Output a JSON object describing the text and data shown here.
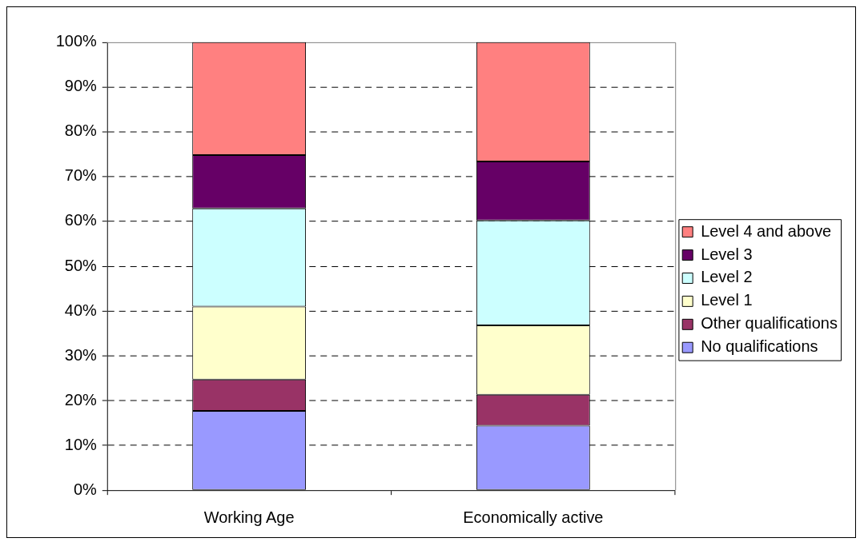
{
  "chart_data": {
    "type": "bar",
    "stacked": true,
    "categories": [
      "Working Age",
      "Economically active"
    ],
    "series": [
      {
        "name": "No qualifications",
        "color": "#9999ff",
        "values": [
          17.7,
          14.4
        ]
      },
      {
        "name": "Other qualifications",
        "color": "#993366",
        "values": [
          7.0,
          6.9
        ]
      },
      {
        "name": "Level 1",
        "color": "#ffffcc",
        "values": [
          16.3,
          15.5
        ]
      },
      {
        "name": "Level 2",
        "color": "#ccffff",
        "values": [
          21.9,
          23.4
        ]
      },
      {
        "name": "Level 3",
        "color": "#660066",
        "values": [
          11.9,
          13.2
        ]
      },
      {
        "name": "Level 4 and above",
        "color": "#ff8080",
        "values": [
          25.2,
          26.6
        ]
      }
    ],
    "ylim": [
      0,
      100
    ],
    "yticks": [
      {
        "value": 0,
        "label": "0%"
      },
      {
        "value": 10,
        "label": "10%"
      },
      {
        "value": 20,
        "label": "20%"
      },
      {
        "value": 30,
        "label": "30%"
      },
      {
        "value": 40,
        "label": "40%"
      },
      {
        "value": 50,
        "label": "50%"
      },
      {
        "value": 60,
        "label": "60%"
      },
      {
        "value": 70,
        "label": "70%"
      },
      {
        "value": 80,
        "label": "80%"
      },
      {
        "value": 90,
        "label": "90%"
      },
      {
        "value": 100,
        "label": "100%"
      }
    ],
    "grid": "y",
    "legend": "right"
  }
}
